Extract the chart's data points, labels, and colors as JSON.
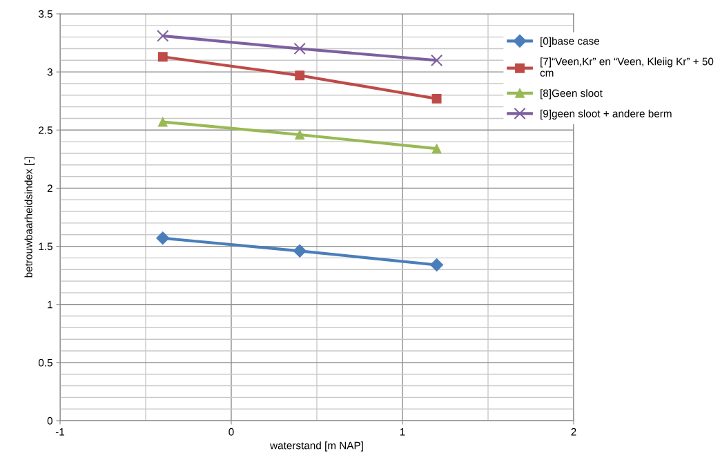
{
  "chart_data": {
    "type": "line",
    "xlabel": "waterstand [m NAP]",
    "ylabel": "betrouwbaarheidsindex [-]",
    "x": [
      -0.4,
      0.4,
      1.2
    ],
    "series": [
      {
        "name": "[0]base case",
        "color": "#4a7ebb",
        "marker": "diamond",
        "values": [
          1.57,
          1.46,
          1.34
        ]
      },
      {
        "name": "[7]“Veen,Kr” en “Veen, Kleiig Kr” + 50 cm",
        "color": "#be4b48",
        "marker": "square",
        "values": [
          3.13,
          2.97,
          2.77
        ]
      },
      {
        "name": "[8]Geen sloot",
        "color": "#98b954",
        "marker": "triangle",
        "values": [
          2.57,
          2.46,
          2.34
        ]
      },
      {
        "name": "[9]geen sloot + andere berm",
        "color": "#7d60a0",
        "marker": "cross",
        "values": [
          3.31,
          3.2,
          3.1
        ]
      }
    ],
    "xlim": [
      -1,
      2
    ],
    "xticks": [
      -1,
      0,
      1,
      2
    ],
    "ylim": [
      0,
      3.5
    ],
    "yticks": [
      0,
      0.5,
      1,
      1.5,
      2,
      2.5,
      3,
      3.5
    ],
    "grid": true,
    "legend": "right",
    "line_style": "solid"
  }
}
